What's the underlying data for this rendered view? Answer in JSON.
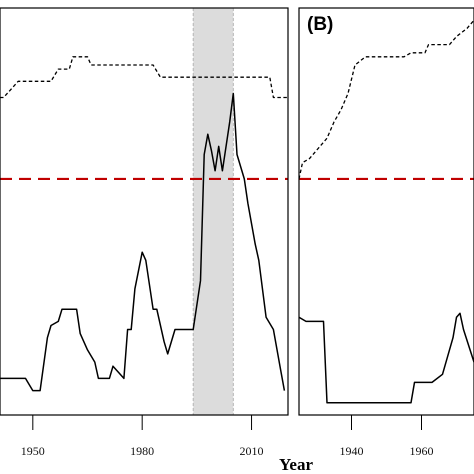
{
  "xlabel": "Year",
  "chart_data": [
    {
      "type": "line",
      "panel": "A",
      "title": "",
      "xlabel": "Year",
      "ylabel": "",
      "xlim": [
        1941,
        2020
      ],
      "ylim": [
        0,
        1
      ],
      "xticks": [
        1950,
        1980,
        2010
      ],
      "shaded_span": [
        1994,
        2005
      ],
      "threshold": 0.58,
      "threshold_color": "#c00000",
      "series": [
        {
          "style": "dashed",
          "x": [
            1941,
            1942,
            1944,
            1946,
            1955,
            1957,
            1960,
            1961,
            1965,
            1966,
            1983,
            1985,
            2005,
            2007,
            2015,
            2016,
            2020
          ],
          "y": [
            0.78,
            0.78,
            0.8,
            0.82,
            0.82,
            0.85,
            0.85,
            0.88,
            0.88,
            0.86,
            0.86,
            0.83,
            0.83,
            0.83,
            0.83,
            0.78,
            0.78
          ]
        },
        {
          "style": "solid",
          "x": [
            1941,
            1945,
            1948,
            1950,
            1952,
            1954,
            1955,
            1957,
            1958,
            1962,
            1963,
            1965,
            1967,
            1968,
            1970,
            1971,
            1972,
            1975,
            1976,
            1977,
            1978,
            1980,
            1981,
            1983,
            1984,
            1986,
            1987,
            1989,
            1990,
            1992,
            1994,
            1996,
            1997,
            1998,
            1999,
            2000,
            2001,
            2002,
            2004,
            2005,
            2006,
            2008,
            2009,
            2011,
            2012,
            2014,
            2016,
            2018,
            2019
          ],
          "y": [
            0.09,
            0.09,
            0.09,
            0.06,
            0.06,
            0.19,
            0.22,
            0.23,
            0.26,
            0.26,
            0.2,
            0.16,
            0.13,
            0.09,
            0.09,
            0.09,
            0.12,
            0.09,
            0.21,
            0.21,
            0.31,
            0.4,
            0.38,
            0.26,
            0.26,
            0.18,
            0.15,
            0.21,
            0.21,
            0.21,
            0.21,
            0.33,
            0.64,
            0.69,
            0.65,
            0.6,
            0.66,
            0.6,
            0.72,
            0.79,
            0.64,
            0.58,
            0.52,
            0.42,
            0.38,
            0.24,
            0.21,
            0.11,
            0.06
          ]
        }
      ]
    },
    {
      "type": "line",
      "panel": "B",
      "title": "(B)",
      "xlabel": "Year",
      "ylabel": "",
      "xlim": [
        1925,
        1975
      ],
      "ylim": [
        0,
        1
      ],
      "xticks": [
        1940,
        1960
      ],
      "threshold": 0.58,
      "threshold_color": "#c00000",
      "series": [
        {
          "style": "dashed",
          "x": [
            1925,
            1926,
            1928,
            1930,
            1931,
            1933,
            1935,
            1937,
            1939,
            1941,
            1944,
            1955,
            1957,
            1961,
            1962,
            1968,
            1970,
            1973,
            1975
          ],
          "y": [
            0.58,
            0.62,
            0.63,
            0.65,
            0.66,
            0.68,
            0.72,
            0.75,
            0.79,
            0.86,
            0.88,
            0.88,
            0.89,
            0.89,
            0.91,
            0.91,
            0.93,
            0.95,
            0.97
          ]
        },
        {
          "style": "solid",
          "x": [
            1925,
            1927,
            1932,
            1933,
            1945,
            1957,
            1958,
            1963,
            1966,
            1969,
            1970,
            1971,
            1972,
            1975
          ],
          "y": [
            0.24,
            0.23,
            0.23,
            0.03,
            0.03,
            0.03,
            0.08,
            0.08,
            0.1,
            0.19,
            0.24,
            0.25,
            0.21,
            0.13
          ]
        }
      ]
    }
  ]
}
